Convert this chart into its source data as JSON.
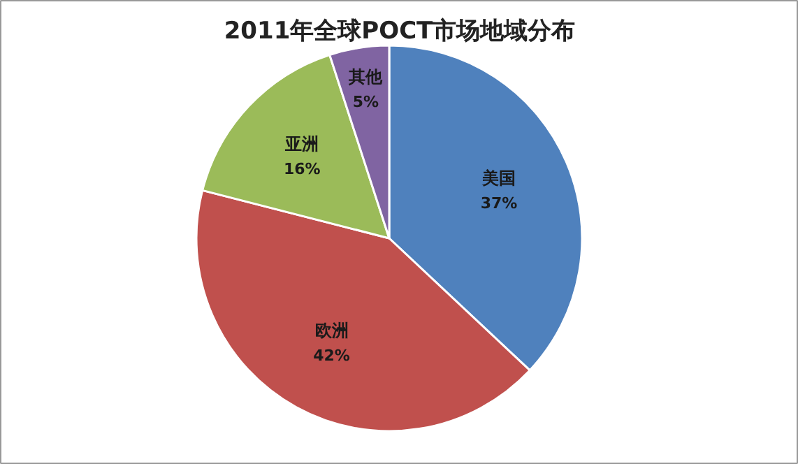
{
  "chart_data": {
    "type": "pie",
    "title": "2011年全球POCT市场地域分布",
    "categories": [
      "美国",
      "欧洲",
      "亚洲",
      "其他"
    ],
    "values": [
      37,
      42,
      16,
      5
    ],
    "colors": [
      "#4f81bd",
      "#c0504d",
      "#9bbb59",
      "#8064a2"
    ],
    "value_labels": [
      "37%",
      "42%",
      "16%",
      "5%"
    ]
  }
}
